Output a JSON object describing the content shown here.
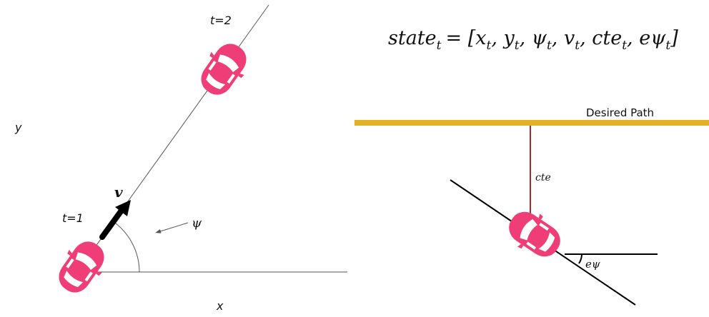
{
  "left_panel": {
    "label_y": "y",
    "label_x": "x",
    "label_t1": "t=1",
    "label_t2": "t=2",
    "label_v": "v",
    "label_psi": "ψ"
  },
  "right_panel": {
    "formula": {
      "lhs": "state",
      "lhs_sub": "t",
      "rhs": "= [x",
      "parts": [
        {
          "base": "x",
          "sub": "t"
        },
        {
          "base": "y",
          "sub": "t"
        },
        {
          "base": "ψ",
          "sub": "t"
        },
        {
          "base": "v",
          "sub": "t"
        },
        {
          "base": "cte",
          "sub": "t"
        },
        {
          "base": "eψ",
          "sub": "t"
        }
      ]
    },
    "desired_path_label": "Desired Path",
    "cte_label": "cte",
    "epsi_label": "eψ"
  },
  "colors": {
    "car": "#ee3d77",
    "path": "#e2b127",
    "cte_line": "#a52a2a",
    "line": "#000000"
  },
  "icons": [
    "car-icon",
    "velocity-arrow-icon"
  ]
}
